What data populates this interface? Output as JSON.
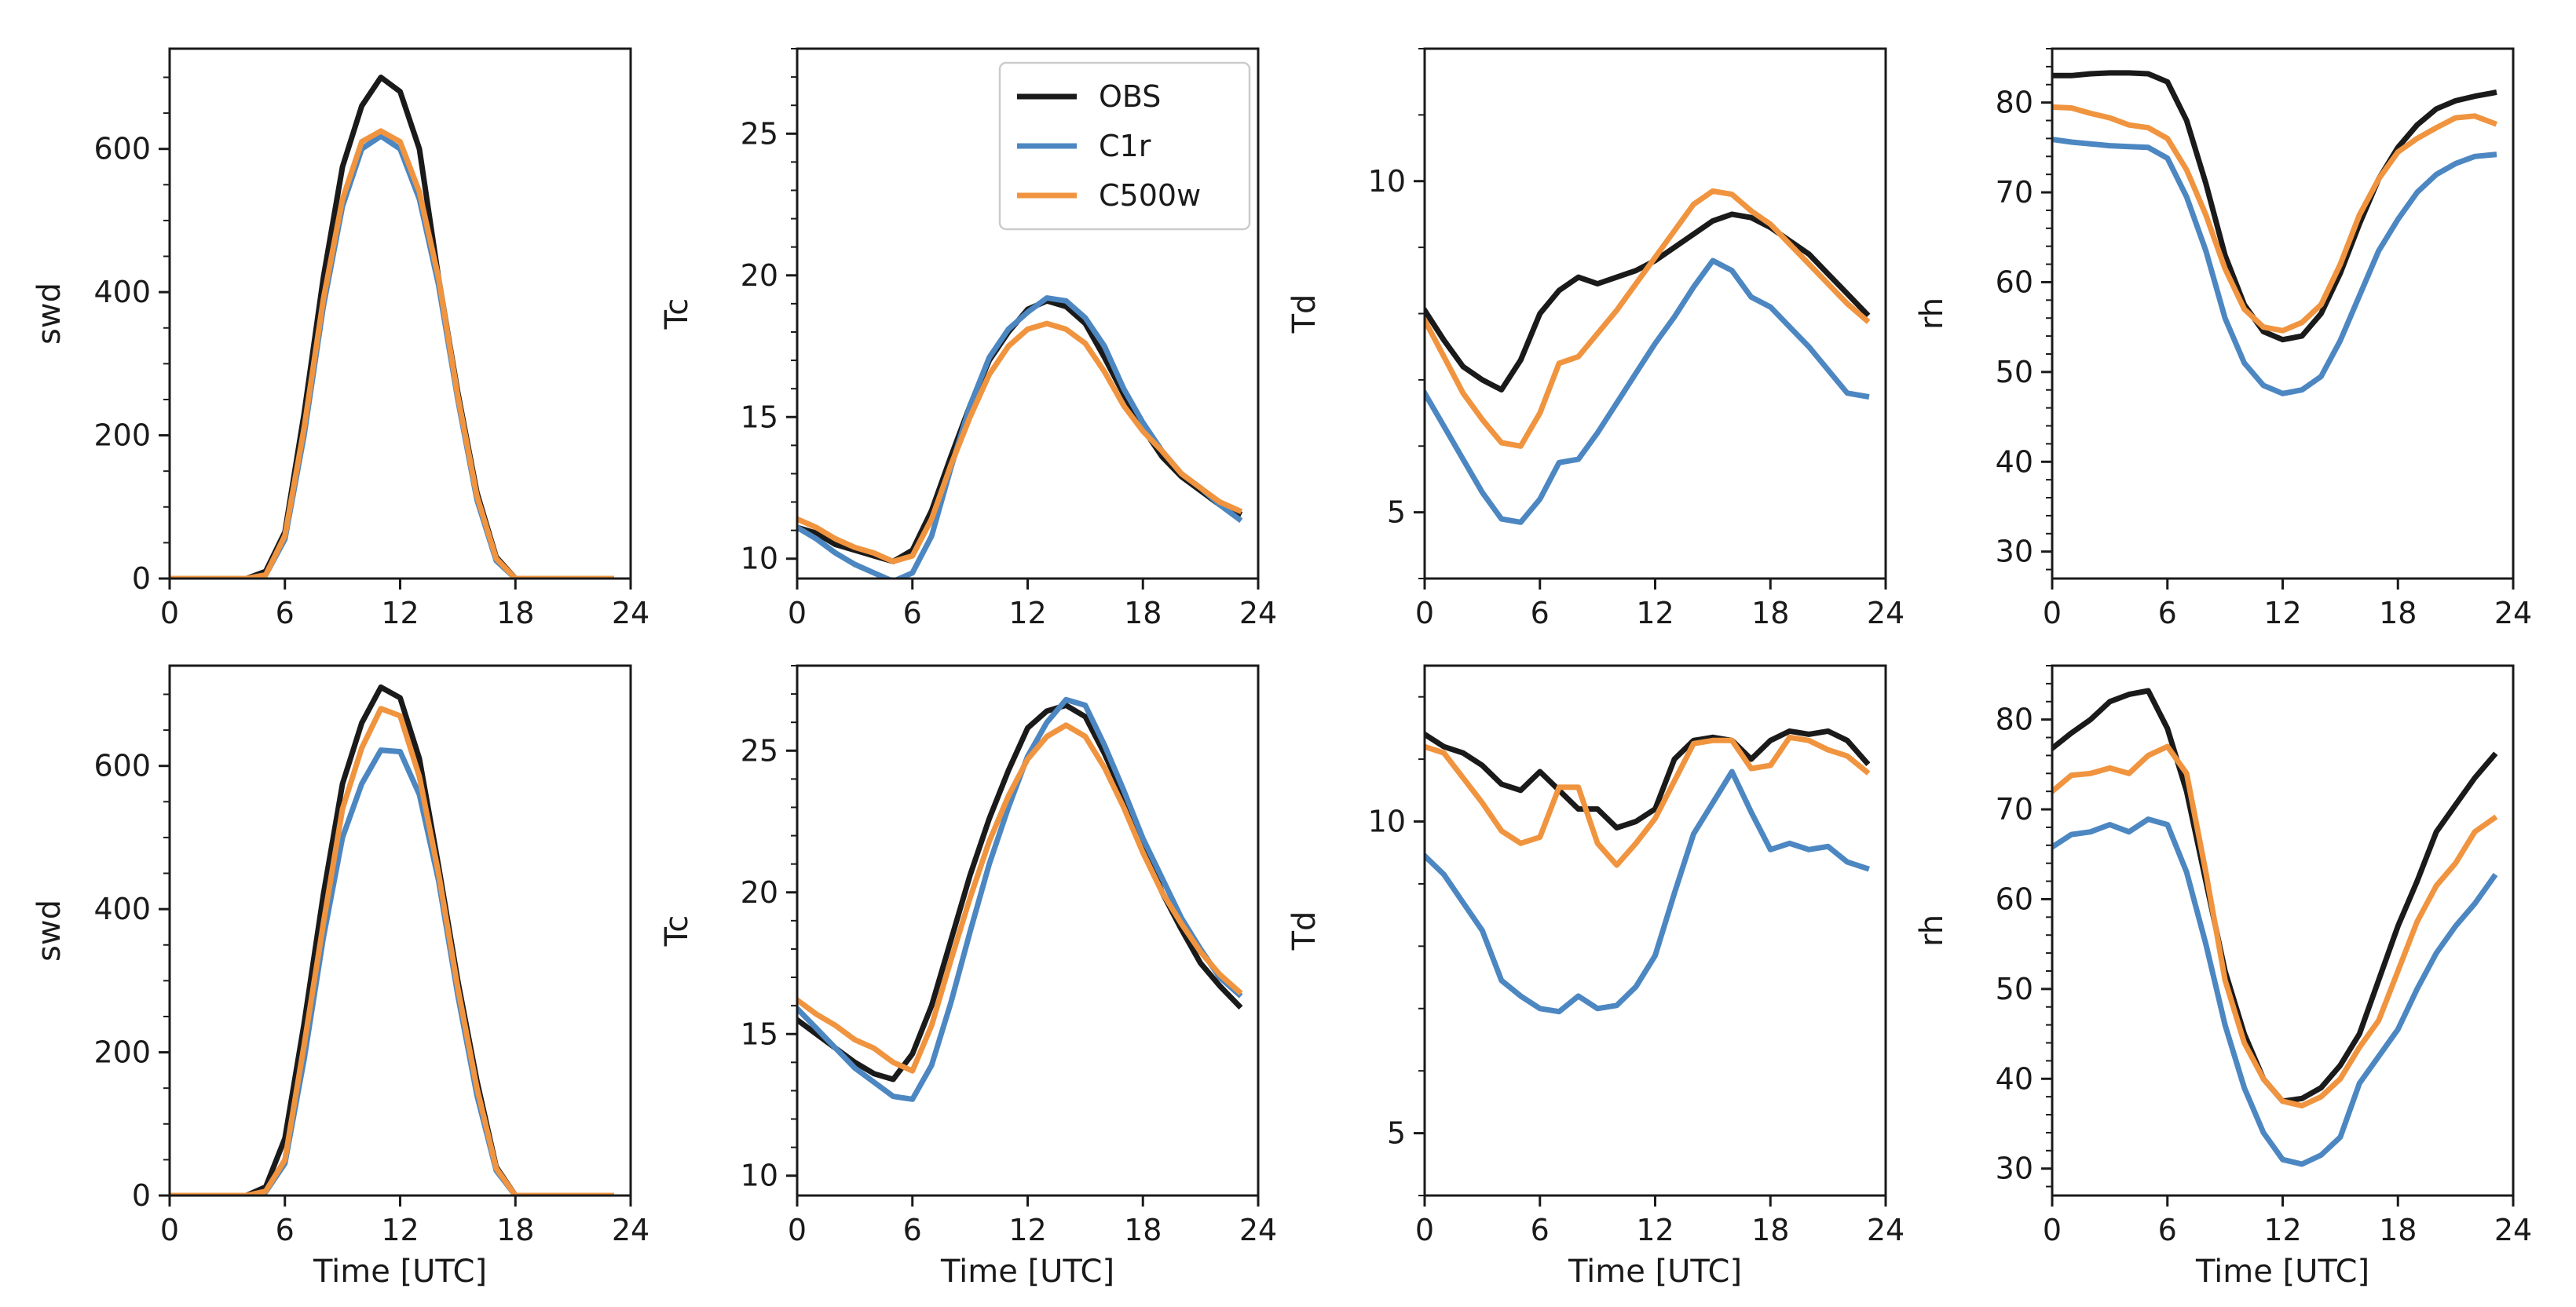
{
  "figure": {
    "series_colors": {
      "OBS": "#1a1a1a",
      "C1r": "#4c87c2",
      "C500w": "#f0943f"
    },
    "legend": [
      "OBS",
      "C1r",
      "C500w"
    ],
    "x_ticks": [
      0,
      6,
      12,
      18,
      24
    ]
  },
  "chart_data": [
    {
      "type": "line",
      "row": 0,
      "col": 0,
      "xlabel": "",
      "ylabel": "swd",
      "xlim": [
        0,
        24
      ],
      "ylim": [
        0,
        740
      ],
      "yticks": [
        0,
        200,
        400,
        600
      ],
      "yminor": 50,
      "x": [
        0,
        1,
        2,
        3,
        4,
        5,
        6,
        7,
        8,
        9,
        10,
        11,
        12,
        13,
        14,
        15,
        16,
        17,
        18,
        19,
        20,
        21,
        22,
        23
      ],
      "series": [
        {
          "name": "OBS",
          "values": [
            0,
            0,
            0,
            0,
            0,
            10,
            65,
            230,
            420,
            575,
            660,
            700,
            680,
            600,
            420,
            260,
            120,
            30,
            0,
            0,
            0,
            0,
            0,
            0
          ]
        },
        {
          "name": "C1r",
          "values": [
            0,
            0,
            0,
            0,
            0,
            5,
            55,
            200,
            380,
            520,
            600,
            618,
            600,
            530,
            410,
            250,
            110,
            25,
            0,
            0,
            0,
            0,
            0,
            0
          ]
        },
        {
          "name": "C500w",
          "values": [
            0,
            0,
            0,
            0,
            0,
            5,
            60,
            210,
            390,
            530,
            610,
            625,
            610,
            540,
            420,
            255,
            115,
            28,
            0,
            0,
            0,
            0,
            0,
            0
          ]
        }
      ]
    },
    {
      "type": "line",
      "row": 0,
      "col": 1,
      "xlabel": "",
      "ylabel": "Tc",
      "xlim": [
        0,
        24
      ],
      "ylim": [
        9.3,
        28
      ],
      "yticks": [
        10,
        15,
        20,
        25
      ],
      "yminor": 1,
      "legend_position": "top-right",
      "x": [
        0,
        1,
        2,
        3,
        4,
        5,
        6,
        7,
        8,
        9,
        10,
        11,
        12,
        13,
        14,
        15,
        16,
        17,
        18,
        19,
        20,
        21,
        22,
        23
      ],
      "series": [
        {
          "name": "OBS",
          "values": [
            11.1,
            10.9,
            10.5,
            10.3,
            10.1,
            9.9,
            10.3,
            11.7,
            13.6,
            15.4,
            17.0,
            18.0,
            18.8,
            19.1,
            18.9,
            18.3,
            17.1,
            15.8,
            14.6,
            13.6,
            12.9,
            12.4,
            11.9,
            11.6
          ]
        },
        {
          "name": "C1r",
          "values": [
            11.1,
            10.7,
            10.2,
            9.8,
            9.5,
            9.2,
            9.5,
            10.8,
            13.2,
            15.4,
            17.1,
            18.1,
            18.7,
            19.2,
            19.1,
            18.5,
            17.5,
            16.0,
            14.8,
            13.8,
            13.0,
            12.5,
            11.9,
            11.4
          ]
        },
        {
          "name": "C500w",
          "values": [
            11.4,
            11.1,
            10.7,
            10.4,
            10.2,
            9.9,
            10.1,
            11.4,
            13.3,
            15.0,
            16.5,
            17.5,
            18.1,
            18.3,
            18.1,
            17.6,
            16.6,
            15.4,
            14.5,
            13.8,
            13.0,
            12.5,
            12.0,
            11.7
          ]
        }
      ]
    },
    {
      "type": "line",
      "row": 0,
      "col": 2,
      "xlabel": "",
      "ylabel": "Td",
      "xlim": [
        0,
        24
      ],
      "ylim": [
        4,
        12
      ],
      "yticks": [
        5,
        10
      ],
      "yminor": 1,
      "x": [
        0,
        1,
        2,
        3,
        4,
        5,
        6,
        7,
        8,
        9,
        10,
        11,
        12,
        13,
        14,
        15,
        16,
        17,
        18,
        19,
        20,
        21,
        22,
        23
      ],
      "series": [
        {
          "name": "OBS",
          "values": [
            8.05,
            7.6,
            7.2,
            7.0,
            6.85,
            7.3,
            8.0,
            8.35,
            8.55,
            8.45,
            8.55,
            8.65,
            8.8,
            9.0,
            9.2,
            9.4,
            9.5,
            9.45,
            9.3,
            9.1,
            8.9,
            8.6,
            8.3,
            8.0
          ]
        },
        {
          "name": "C1r",
          "values": [
            6.8,
            6.3,
            5.8,
            5.3,
            4.9,
            4.85,
            5.2,
            5.75,
            5.8,
            6.2,
            6.65,
            7.1,
            7.55,
            7.95,
            8.4,
            8.8,
            8.65,
            8.25,
            8.1,
            7.8,
            7.5,
            7.15,
            6.8,
            6.75
          ]
        },
        {
          "name": "C500w",
          "values": [
            7.9,
            7.35,
            6.8,
            6.4,
            6.05,
            6.0,
            6.5,
            7.25,
            7.35,
            7.7,
            8.05,
            8.45,
            8.85,
            9.25,
            9.65,
            9.85,
            9.8,
            9.55,
            9.35,
            9.05,
            8.75,
            8.45,
            8.15,
            7.9
          ]
        }
      ]
    },
    {
      "type": "line",
      "row": 0,
      "col": 3,
      "xlabel": "",
      "ylabel": "rh",
      "xlim": [
        0,
        24
      ],
      "ylim": [
        27,
        86
      ],
      "yticks": [
        30,
        40,
        50,
        60,
        70,
        80
      ],
      "yminor": 2,
      "x": [
        0,
        1,
        2,
        3,
        4,
        5,
        6,
        7,
        8,
        9,
        10,
        11,
        12,
        13,
        14,
        15,
        16,
        17,
        18,
        19,
        20,
        21,
        22,
        23
      ],
      "series": [
        {
          "name": "OBS",
          "values": [
            83.0,
            83.0,
            83.2,
            83.3,
            83.3,
            83.2,
            82.3,
            78.0,
            71.0,
            63.0,
            57.5,
            54.5,
            53.6,
            54.0,
            56.5,
            61.0,
            66.5,
            71.5,
            75.0,
            77.5,
            79.3,
            80.2,
            80.7,
            81.1
          ]
        },
        {
          "name": "C1r",
          "values": [
            75.9,
            75.6,
            75.4,
            75.2,
            75.1,
            75.0,
            73.8,
            69.5,
            63.5,
            56.0,
            51.0,
            48.5,
            47.6,
            48.0,
            49.5,
            53.5,
            58.5,
            63.5,
            67.0,
            70.0,
            72.0,
            73.2,
            74.0,
            74.2
          ]
        },
        {
          "name": "C500w",
          "values": [
            79.5,
            79.4,
            78.8,
            78.3,
            77.5,
            77.2,
            76.0,
            72.5,
            67.5,
            61.5,
            57.0,
            55.0,
            54.6,
            55.5,
            57.5,
            62.0,
            67.5,
            71.5,
            74.5,
            76.0,
            77.2,
            78.3,
            78.5,
            77.7
          ]
        }
      ]
    },
    {
      "type": "line",
      "row": 1,
      "col": 0,
      "xlabel": "Time [UTC]",
      "ylabel": "swd",
      "xlim": [
        0,
        24
      ],
      "ylim": [
        0,
        740
      ],
      "yticks": [
        0,
        200,
        400,
        600
      ],
      "yminor": 50,
      "x": [
        0,
        1,
        2,
        3,
        4,
        5,
        6,
        7,
        8,
        9,
        10,
        11,
        12,
        13,
        14,
        15,
        16,
        17,
        18,
        19,
        20,
        21,
        22,
        23
      ],
      "series": [
        {
          "name": "OBS",
          "values": [
            0,
            0,
            0,
            0,
            0,
            12,
            80,
            240,
            420,
            575,
            660,
            710,
            695,
            610,
            460,
            300,
            160,
            40,
            0,
            0,
            0,
            0,
            0,
            0
          ]
        },
        {
          "name": "C1r",
          "values": [
            0,
            0,
            0,
            0,
            0,
            5,
            45,
            190,
            360,
            500,
            575,
            622,
            620,
            560,
            440,
            280,
            140,
            35,
            0,
            0,
            0,
            0,
            0,
            0
          ]
        },
        {
          "name": "C500w",
          "values": [
            0,
            0,
            0,
            0,
            0,
            6,
            50,
            210,
            380,
            540,
            625,
            680,
            670,
            585,
            450,
            290,
            150,
            38,
            0,
            0,
            0,
            0,
            0,
            0
          ]
        }
      ]
    },
    {
      "type": "line",
      "row": 1,
      "col": 1,
      "xlabel": "Time [UTC]",
      "ylabel": "Tc",
      "xlim": [
        0,
        24
      ],
      "ylim": [
        9.3,
        28
      ],
      "yticks": [
        10,
        15,
        20,
        25
      ],
      "yminor": 1,
      "x": [
        0,
        1,
        2,
        3,
        4,
        5,
        6,
        7,
        8,
        9,
        10,
        11,
        12,
        13,
        14,
        15,
        16,
        17,
        18,
        19,
        20,
        21,
        22,
        23
      ],
      "series": [
        {
          "name": "OBS",
          "values": [
            15.5,
            15.0,
            14.5,
            14.0,
            13.6,
            13.4,
            14.3,
            16.0,
            18.3,
            20.6,
            22.6,
            24.3,
            25.8,
            26.4,
            26.6,
            26.2,
            24.9,
            23.4,
            21.8,
            20.0,
            18.7,
            17.5,
            16.7,
            16.0
          ]
        },
        {
          "name": "C1r",
          "values": [
            15.9,
            15.2,
            14.5,
            13.8,
            13.3,
            12.8,
            12.7,
            13.9,
            16.1,
            18.6,
            21.0,
            23.0,
            24.8,
            26.0,
            26.8,
            26.6,
            25.2,
            23.6,
            21.9,
            20.5,
            19.1,
            18.0,
            17.0,
            16.4
          ]
        },
        {
          "name": "C500w",
          "values": [
            16.2,
            15.7,
            15.3,
            14.8,
            14.5,
            14.0,
            13.7,
            15.3,
            17.6,
            19.8,
            21.8,
            23.4,
            24.7,
            25.5,
            25.9,
            25.5,
            24.4,
            23.0,
            21.4,
            20.0,
            18.9,
            17.9,
            17.1,
            16.5
          ]
        }
      ]
    },
    {
      "type": "line",
      "row": 1,
      "col": 2,
      "xlabel": "Time [UTC]",
      "ylabel": "Td",
      "xlim": [
        0,
        24
      ],
      "ylim": [
        4,
        12.5
      ],
      "yticks": [
        5,
        10
      ],
      "yminor": 1,
      "x": [
        0,
        1,
        2,
        3,
        4,
        5,
        6,
        7,
        8,
        9,
        10,
        11,
        12,
        13,
        14,
        15,
        16,
        17,
        18,
        19,
        20,
        21,
        22,
        23
      ],
      "series": [
        {
          "name": "OBS",
          "values": [
            11.4,
            11.2,
            11.1,
            10.9,
            10.6,
            10.5,
            10.8,
            10.5,
            10.2,
            10.2,
            9.9,
            10.0,
            10.2,
            11.0,
            11.3,
            11.35,
            11.3,
            11.0,
            11.3,
            11.45,
            11.4,
            11.45,
            11.3,
            10.95
          ]
        },
        {
          "name": "C1r",
          "values": [
            9.45,
            9.15,
            8.7,
            8.25,
            7.45,
            7.2,
            7.0,
            6.95,
            7.2,
            7.0,
            7.05,
            7.35,
            7.85,
            8.85,
            9.8,
            10.3,
            10.8,
            10.15,
            9.55,
            9.65,
            9.55,
            9.6,
            9.35,
            9.25
          ]
        },
        {
          "name": "C500w",
          "values": [
            11.2,
            11.1,
            10.7,
            10.3,
            9.85,
            9.65,
            9.75,
            10.55,
            10.55,
            9.65,
            9.3,
            9.65,
            10.05,
            10.65,
            11.25,
            11.3,
            11.3,
            10.85,
            10.9,
            11.35,
            11.3,
            11.15,
            11.05,
            10.8
          ]
        }
      ]
    },
    {
      "type": "line",
      "row": 1,
      "col": 3,
      "xlabel": "Time [UTC]",
      "ylabel": "rh",
      "xlim": [
        0,
        24
      ],
      "ylim": [
        27,
        86
      ],
      "yticks": [
        30,
        40,
        50,
        60,
        70,
        80
      ],
      "yminor": 2,
      "x": [
        0,
        1,
        2,
        3,
        4,
        5,
        6,
        7,
        8,
        9,
        10,
        11,
        12,
        13,
        14,
        15,
        16,
        17,
        18,
        19,
        20,
        21,
        22,
        23
      ],
      "series": [
        {
          "name": "OBS",
          "values": [
            76.8,
            78.5,
            80.0,
            82.0,
            82.8,
            83.2,
            79.0,
            72.0,
            62.0,
            52.0,
            45.0,
            40.0,
            37.5,
            37.8,
            39.0,
            41.5,
            45.0,
            51.0,
            57.0,
            62.0,
            67.5,
            70.5,
            73.5,
            76.0
          ]
        },
        {
          "name": "C1r",
          "values": [
            65.8,
            67.2,
            67.5,
            68.3,
            67.5,
            68.9,
            68.3,
            63.0,
            55.0,
            46.0,
            39.0,
            34.0,
            31.0,
            30.5,
            31.5,
            33.5,
            39.5,
            42.5,
            45.5,
            50.0,
            54.0,
            57.0,
            59.5,
            62.5
          ]
        },
        {
          "name": "C500w",
          "values": [
            72.0,
            73.8,
            74.0,
            74.6,
            74.0,
            76.0,
            77.0,
            74.0,
            63.0,
            51.0,
            44.0,
            40.0,
            37.5,
            37.0,
            38.0,
            40.0,
            43.5,
            46.5,
            52.0,
            57.5,
            61.5,
            64.0,
            67.5,
            69.0
          ]
        }
      ]
    }
  ]
}
